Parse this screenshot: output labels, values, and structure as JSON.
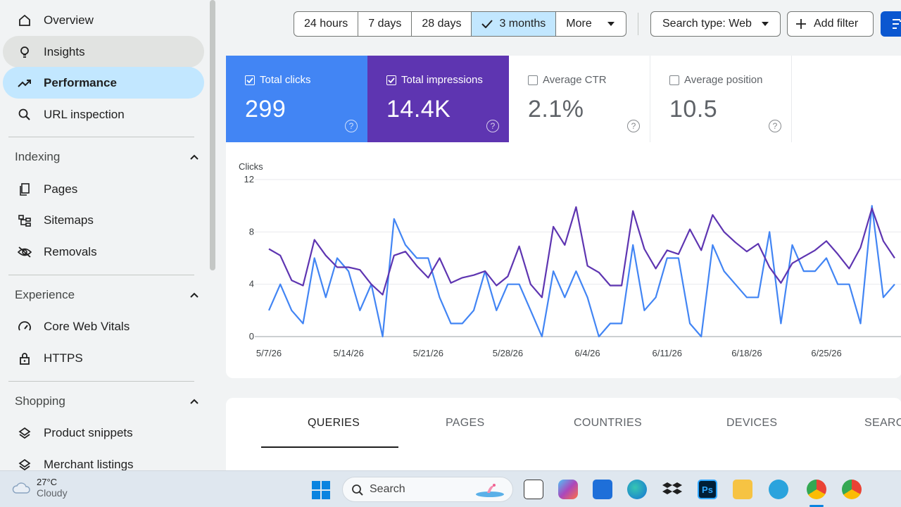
{
  "sidebar": {
    "nav": [
      {
        "label": "Overview",
        "icon": "home-icon"
      },
      {
        "label": "Insights",
        "icon": "lightbulb-icon"
      },
      {
        "label": "Performance",
        "icon": "trending-up-icon"
      },
      {
        "label": "URL inspection",
        "icon": "search-icon"
      }
    ],
    "sections": [
      {
        "title": "Indexing",
        "items": [
          {
            "label": "Pages",
            "icon": "pages-icon"
          },
          {
            "label": "Sitemaps",
            "icon": "sitemap-icon"
          },
          {
            "label": "Removals",
            "icon": "eye-off-icon"
          }
        ]
      },
      {
        "title": "Experience",
        "items": [
          {
            "label": "Core Web Vitals",
            "icon": "speedometer-icon"
          },
          {
            "label": "HTTPS",
            "icon": "lock-icon"
          }
        ]
      },
      {
        "title": "Shopping",
        "items": [
          {
            "label": "Product snippets",
            "icon": "layers-icon"
          },
          {
            "label": "Merchant listings",
            "icon": "layers-icon"
          }
        ]
      }
    ]
  },
  "toolbar": {
    "ranges": [
      "24 hours",
      "7 days",
      "28 days",
      "3 months",
      "More"
    ],
    "selected_range": "3 months",
    "search_type": "Search type: Web",
    "add_filter": "Add filter"
  },
  "metrics": [
    {
      "label": "Total clicks",
      "value": "299",
      "checked": true,
      "color": "#4285f4"
    },
    {
      "label": "Total impressions",
      "value": "14.4K",
      "checked": true,
      "color": "#5e35b1"
    },
    {
      "label": "Average CTR",
      "value": "2.1%",
      "checked": false
    },
    {
      "label": "Average position",
      "value": "10.5",
      "checked": false
    }
  ],
  "chart_data": {
    "type": "line",
    "ylabel": "Clicks",
    "ylim": [
      0,
      12
    ],
    "yticks": [
      0,
      4,
      8,
      12
    ],
    "xtick_labels": [
      "5/7/26",
      "5/14/26",
      "5/21/26",
      "5/28/26",
      "6/4/26",
      "6/11/26",
      "6/18/26",
      "6/25/26"
    ],
    "series": [
      {
        "color": "#4285f4",
        "values": [
          2,
          4,
          2,
          1,
          6,
          3,
          6,
          5,
          2,
          4,
          0,
          9,
          7,
          6,
          6,
          3,
          1,
          1,
          2,
          5,
          2,
          4,
          4,
          2,
          0,
          5,
          3,
          5,
          3,
          0,
          1,
          1,
          7,
          2,
          3,
          6,
          6,
          1,
          0,
          7,
          5,
          4,
          3,
          3,
          8,
          1,
          7,
          5,
          5,
          6,
          4,
          4,
          1,
          10,
          3,
          4
        ]
      },
      {
        "color": "#5e35b1",
        "values": [
          6.7,
          6.2,
          4.3,
          3.9,
          7.4,
          6.2,
          5.3,
          5.3,
          5.1,
          4,
          3.2,
          6.2,
          6.5,
          5.4,
          4.5,
          6,
          4.1,
          4.5,
          4.7,
          5,
          3.9,
          4.6,
          6.9,
          4,
          3,
          8.4,
          7,
          9.9,
          5.4,
          4.9,
          3.9,
          3.9,
          9.6,
          6.7,
          5.2,
          6.6,
          6.3,
          8.2,
          6.6,
          9.3,
          8,
          7.2,
          6.5,
          7.1,
          5.3,
          4.1,
          5.6,
          6.1,
          6.6,
          7.3,
          6.3,
          5.2,
          6.8,
          9.8,
          7.3,
          6
        ]
      }
    ]
  },
  "tabs": [
    "QUERIES",
    "PAGES",
    "COUNTRIES",
    "DEVICES",
    "SEARCH"
  ],
  "taskbar": {
    "temp": "27°C",
    "condition": "Cloudy",
    "search": "Search"
  }
}
